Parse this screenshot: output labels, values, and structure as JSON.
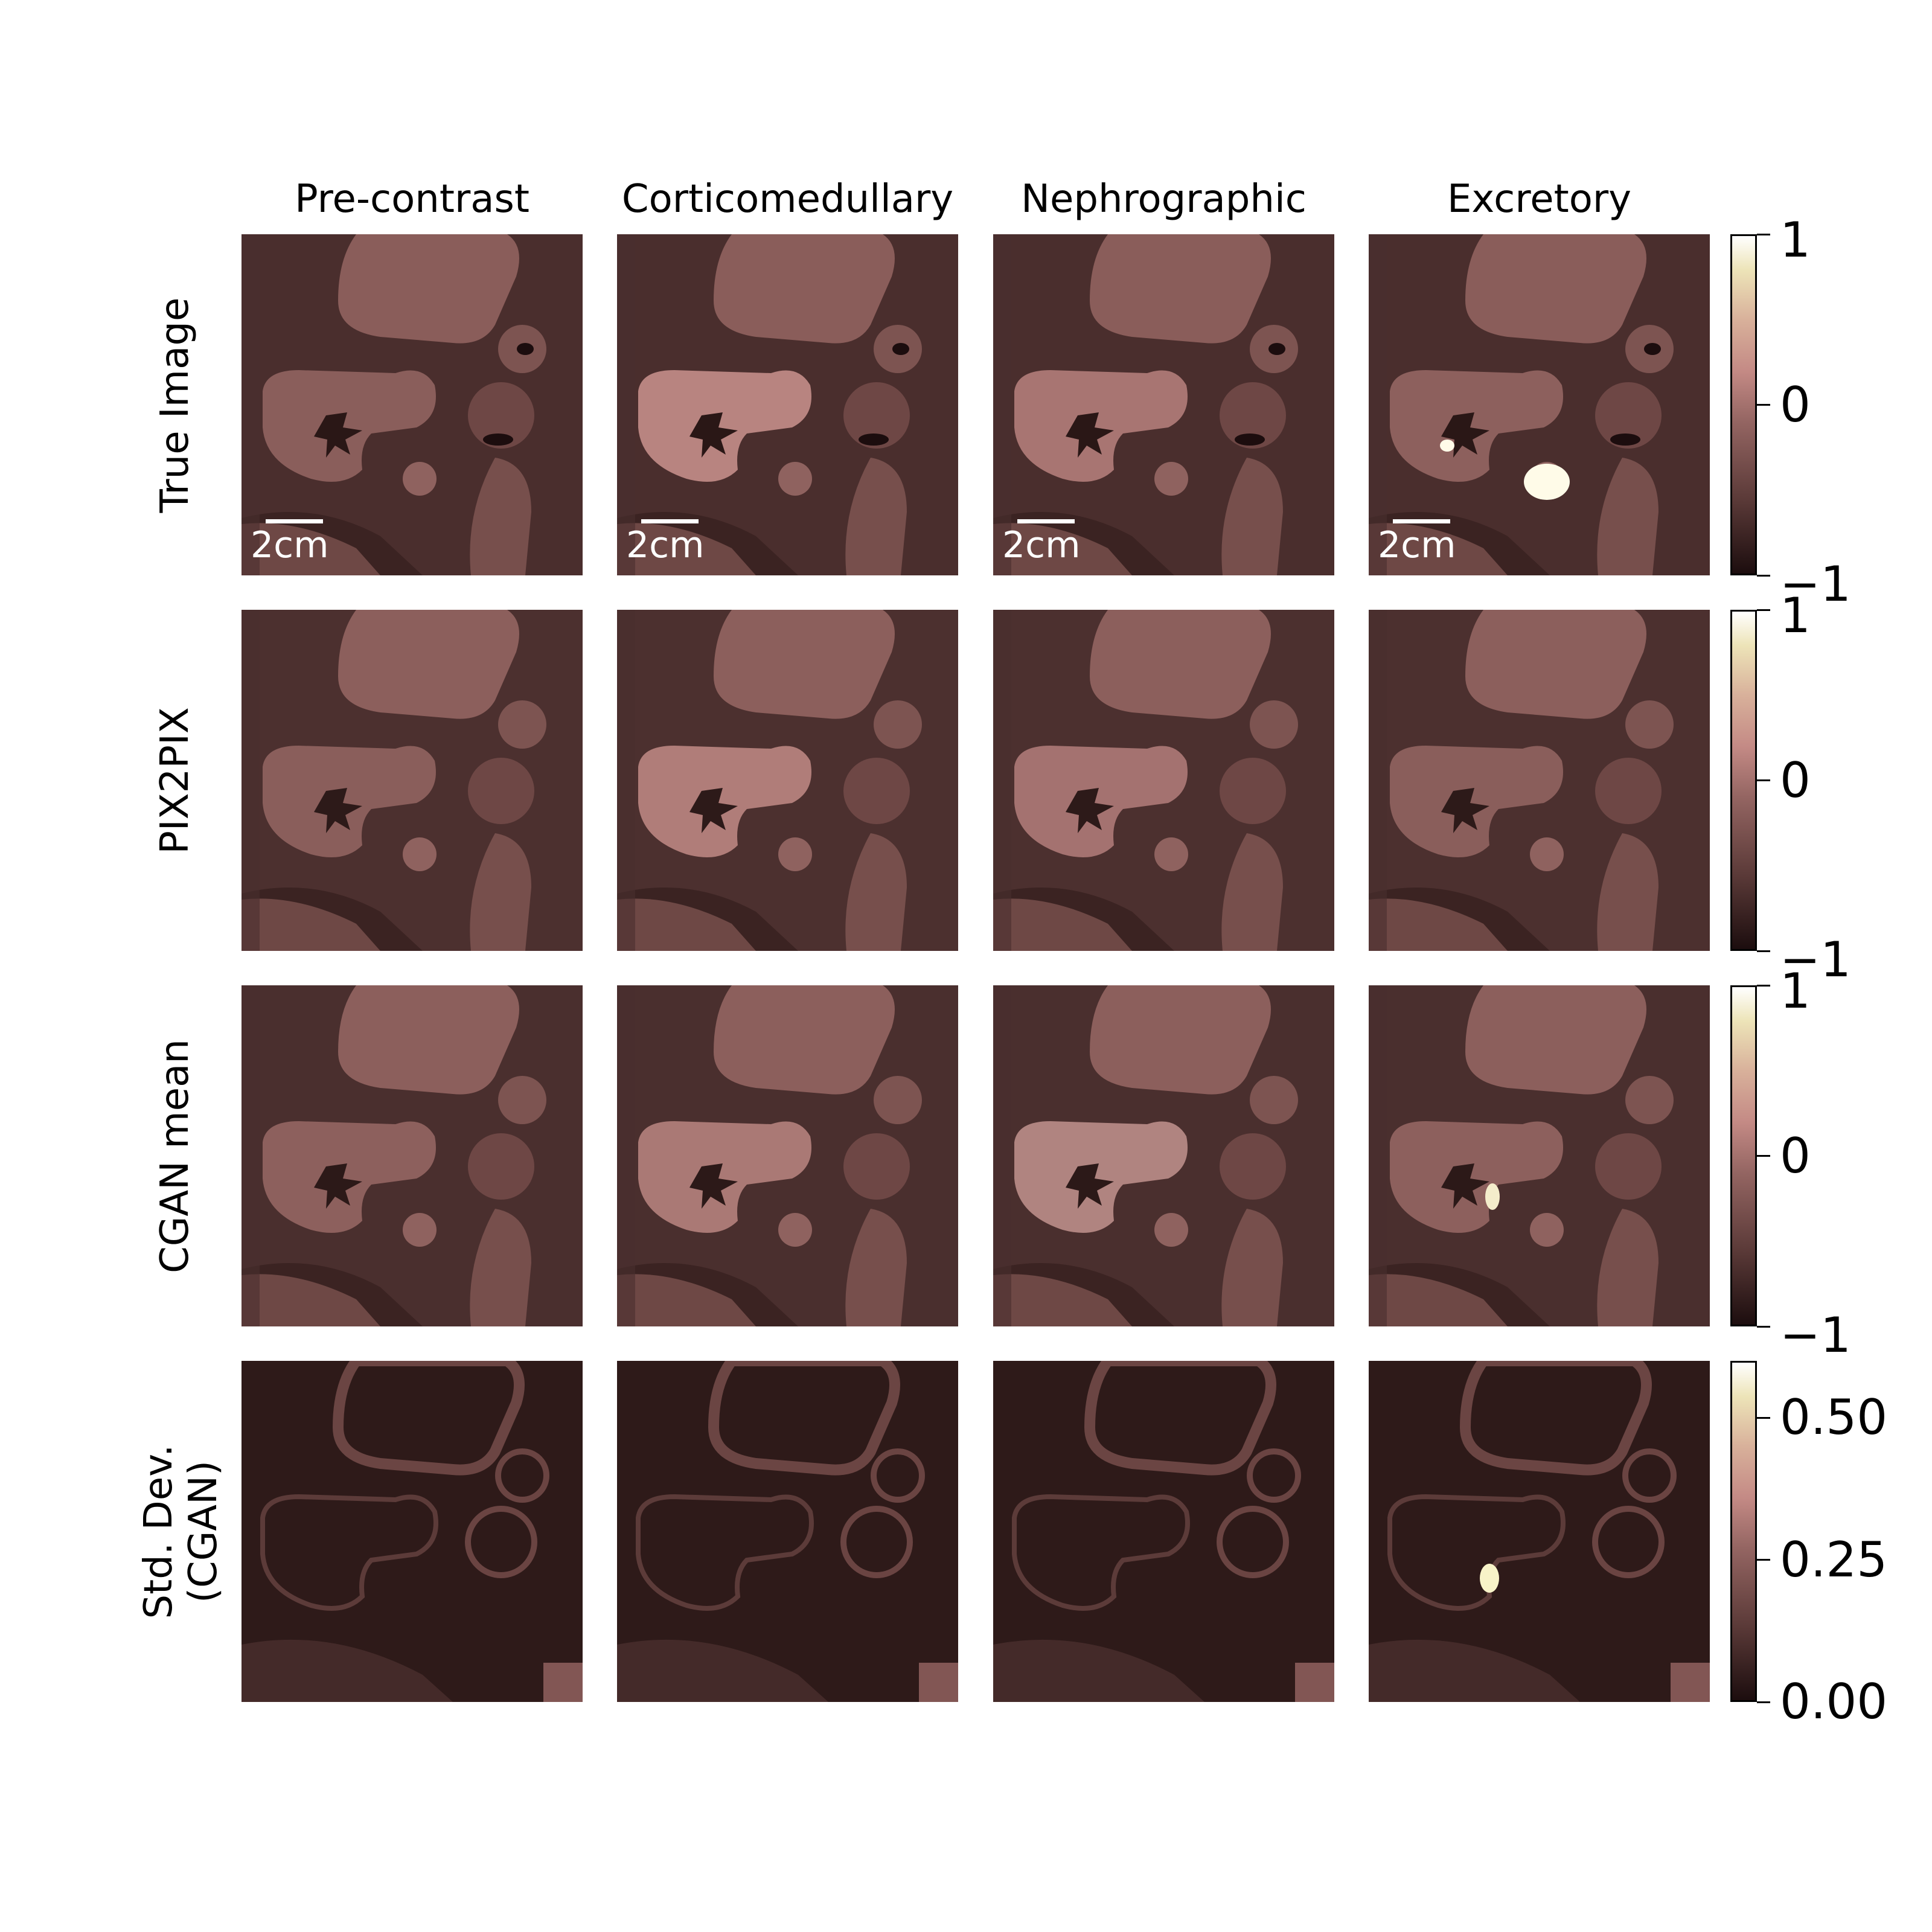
{
  "columns": [
    {
      "title": "Pre-contrast"
    },
    {
      "title": "Corticomedullary"
    },
    {
      "title": "Nephrographic"
    },
    {
      "title": "Excretory"
    }
  ],
  "rows": [
    {
      "label": "True Image",
      "scale_bar_label": "2cm",
      "colorbar": {
        "ticks": [
          {
            "value": 1,
            "label": "1"
          },
          {
            "value": 0,
            "label": "0"
          },
          {
            "value": -1,
            "label": "−1"
          }
        ],
        "range": [
          -1,
          1
        ]
      }
    },
    {
      "label": "PIX2PIX",
      "colorbar": {
        "ticks": [
          {
            "value": 1,
            "label": "1"
          },
          {
            "value": 0,
            "label": "0"
          },
          {
            "value": -1,
            "label": "−1"
          }
        ],
        "range": [
          -1,
          1
        ]
      }
    },
    {
      "label": "CGAN mean",
      "colorbar": {
        "ticks": [
          {
            "value": 1,
            "label": "1"
          },
          {
            "value": 0,
            "label": "0"
          },
          {
            "value": -1,
            "label": "−1"
          }
        ],
        "range": [
          -1,
          1
        ]
      }
    },
    {
      "label": "Std. Dev.\n(CGAN)",
      "colorbar": {
        "ticks": [
          {
            "value": 0.5,
            "label": "0.50"
          },
          {
            "value": 0.25,
            "label": "0.25"
          },
          {
            "value": 0.0,
            "label": "0.00"
          }
        ],
        "range": [
          0,
          0.6
        ]
      }
    }
  ],
  "colormap": {
    "low": "#1c0d0e",
    "mid": "#946562",
    "high": "#ffffff"
  }
}
